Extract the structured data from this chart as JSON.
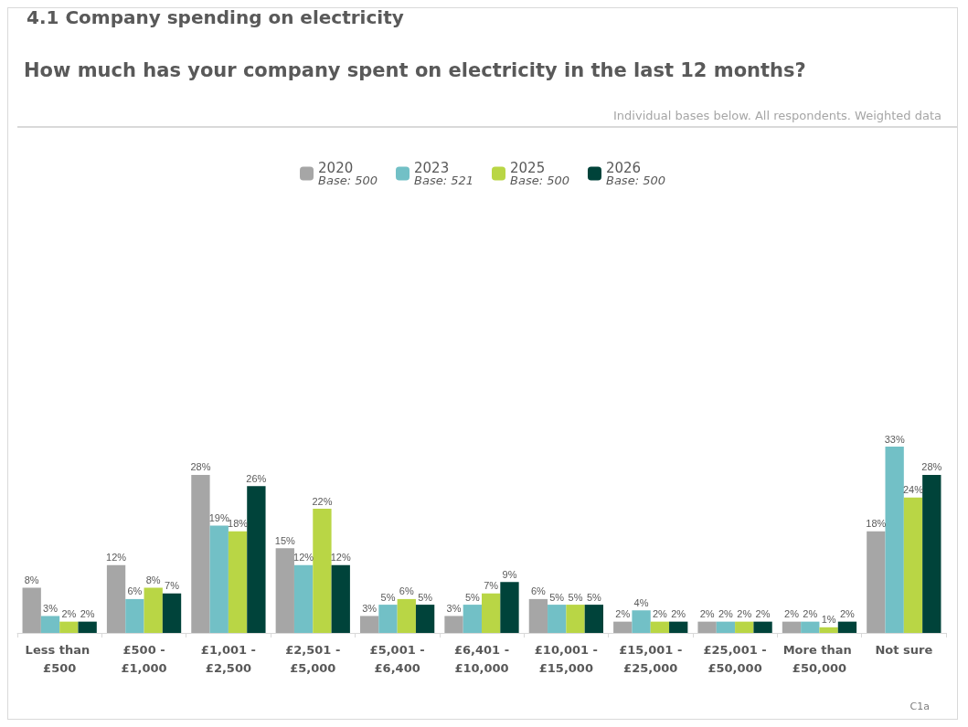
{
  "chart_data": {
    "type": "bar",
    "title": "How much has your company spent on electricity in the last 12 months?",
    "subtitle": "Individual bases below. All respondents. Weighted data",
    "annotations": [
      "4.1 Company spending on electricity",
      "C1a"
    ],
    "categories": [
      "Less than £500",
      "£500 - £1,000",
      "£1,001 - £2,500",
      "£2,501 - £5,000",
      "£5,001 - £6,400",
      "£6,401 - £10,000",
      "£10,001 - £15,000",
      "£15,001 - £25,000",
      "£25,001 - £50,000",
      "More than £50,000",
      "Not sure"
    ],
    "series": [
      {
        "name": "2020\nBase: 500",
        "color": "#a6a6a6",
        "values": [
          8,
          12,
          28,
          15,
          3,
          3,
          6,
          2,
          2,
          2,
          18
        ],
        "value_labels": [
          "8%",
          "12%",
          "28%",
          "15%",
          "3%",
          "3%",
          "6%",
          "2%",
          "2%",
          "2%",
          "18%"
        ]
      },
      {
        "name": "2023\nBase: 521",
        "color": "#72c0c6",
        "values": [
          3,
          6,
          19,
          12,
          5,
          5,
          5,
          4,
          2,
          2,
          33
        ],
        "value_labels": [
          "3%",
          "6%",
          "19%",
          "12%",
          "5%",
          "5%",
          "5%",
          "4%",
          "2%",
          "2%",
          "33%"
        ]
      },
      {
        "name": "2025\nBase: 500",
        "color": "#b9d645",
        "values": [
          2,
          8,
          18,
          22,
          6,
          7,
          5,
          2,
          2,
          1,
          24
        ],
        "value_labels": [
          "2%",
          "8%",
          "18%",
          "22%",
          "6%",
          "7%",
          "5%",
          "2%",
          "2%",
          "1%",
          "24%"
        ]
      },
      {
        "name": "2026\nBase: 500",
        "color": "#00433a",
        "values": [
          2,
          7,
          26,
          12,
          5,
          9,
          5,
          2,
          2,
          2,
          28
        ],
        "value_labels": [
          "2%",
          "7%",
          "26%",
          "12%",
          "5%",
          "9%",
          "5%",
          "2%",
          "2%",
          "2%",
          "28%"
        ]
      }
    ],
    "legend": "top"
  }
}
